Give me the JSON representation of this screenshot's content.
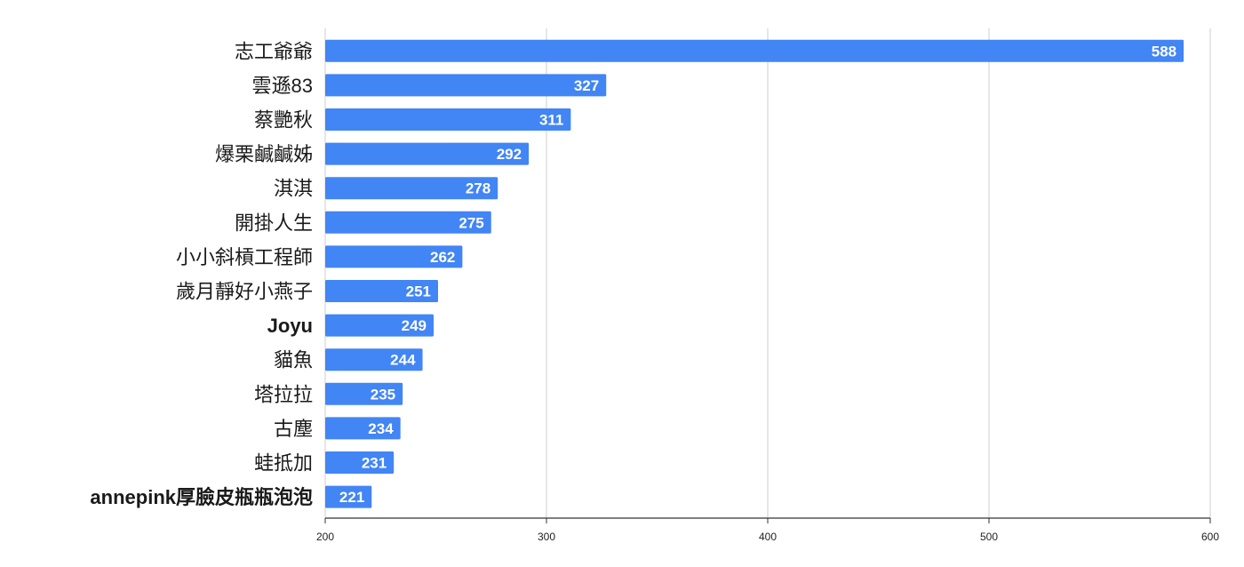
{
  "chart_data": {
    "type": "bar",
    "orientation": "horizontal",
    "categories": [
      "志工爺爺",
      "雲遜83",
      "蔡艷秋",
      "爆栗鹹鹹姊",
      "淇淇",
      "開掛人生",
      "小小斜槓工程師",
      "歲月靜好小燕子",
      "Joyu",
      "貓魚",
      "塔拉拉",
      "古塵",
      "蛙抵加",
      "annepink厚臉皮瓶瓶泡泡"
    ],
    "values": [
      588,
      327,
      311,
      292,
      278,
      275,
      262,
      251,
      249,
      244,
      235,
      234,
      231,
      221
    ],
    "title": "",
    "xlabel": "",
    "ylabel": "",
    "xlim": [
      200,
      600
    ],
    "xticks": [
      "200",
      "300",
      "400",
      "500",
      "600"
    ],
    "grid": "vertical",
    "legend": "none",
    "colors": {
      "bar": "#4285f4",
      "value_label": "#ffffff",
      "gridline": "#cccccc",
      "axis": "#333333"
    }
  }
}
